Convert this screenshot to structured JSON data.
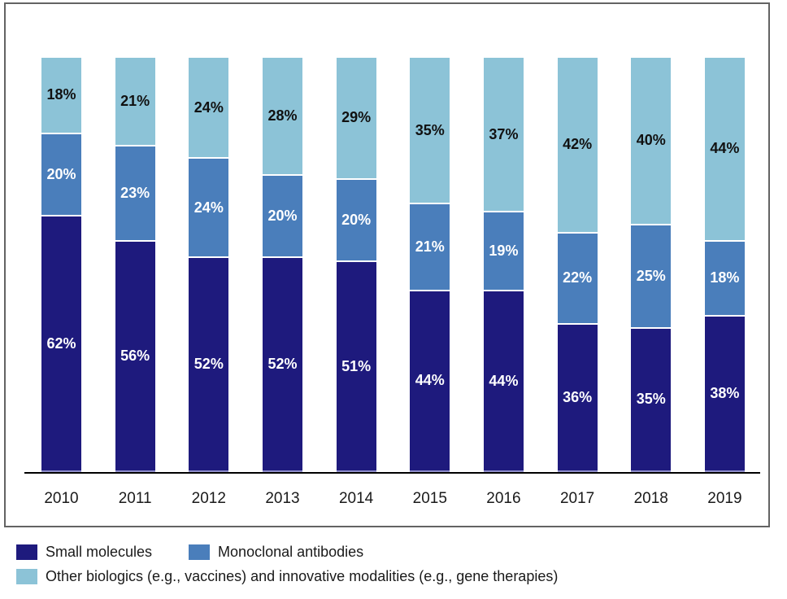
{
  "chart_data": {
    "type": "bar",
    "stacked": true,
    "orientation": "vertical",
    "categories": [
      "2010",
      "2011",
      "2012",
      "2013",
      "2014",
      "2015",
      "2016",
      "2017",
      "2018",
      "2019"
    ],
    "series": [
      {
        "name": "Small molecules",
        "color": "#1e1a7d",
        "label_color": "#ffffff",
        "values": [
          62,
          56,
          52,
          52,
          51,
          44,
          44,
          36,
          35,
          38
        ]
      },
      {
        "name": "Monoclonal antibodies",
        "color": "#4a7ebb",
        "label_color": "#ffffff",
        "values": [
          20,
          23,
          24,
          20,
          20,
          21,
          19,
          22,
          25,
          18
        ]
      },
      {
        "name": "Other biologics (e.g., vaccines) and innovative modalities (e.g., gene therapies)",
        "color": "#8cc3d7",
        "label_color": "#111111",
        "values": [
          18,
          21,
          24,
          28,
          29,
          35,
          37,
          42,
          40,
          44
        ]
      }
    ],
    "value_suffix": "%",
    "ylim": [
      0,
      100
    ],
    "grid": false,
    "title": "",
    "xlabel": "",
    "ylabel": "",
    "legend_position": "bottom",
    "legend_rows": [
      [
        "Small molecules",
        "Monoclonal antibodies"
      ],
      [
        "Other biologics (e.g., vaccines) and innovative modalities (e.g., gene therapies)"
      ]
    ]
  },
  "frame": {
    "border_color": "#636363",
    "axis_color": "#000000",
    "background": "#ffffff"
  }
}
